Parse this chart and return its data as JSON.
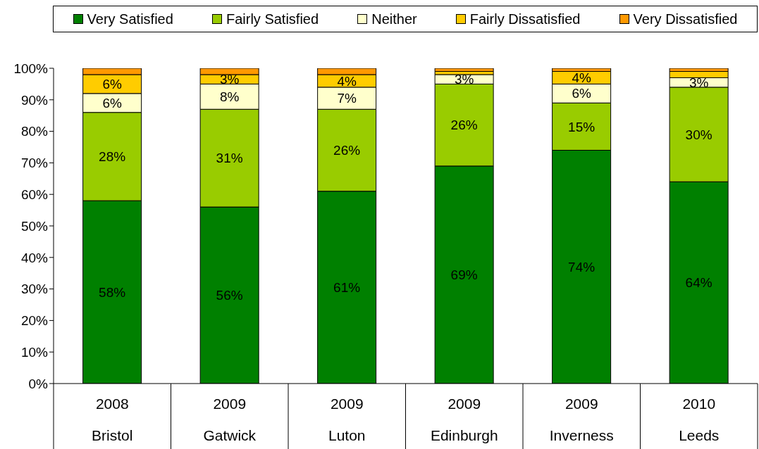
{
  "chart_data": {
    "type": "bar",
    "stacked": true,
    "categories": [
      "2008\nBristol",
      "2009\nGatwick",
      "2009\nLuton",
      "2009\nEdinburgh",
      "2009\nInverness",
      "2010\nLeeds"
    ],
    "series": [
      {
        "name": "Very Satisfied",
        "color": "#008000",
        "values": [
          58,
          56,
          61,
          69,
          74,
          64
        ],
        "value_labels": [
          "58%",
          "56%",
          "61%",
          "69%",
          "74%",
          "64%"
        ]
      },
      {
        "name": "Fairly Satisfied",
        "color": "#99cc00",
        "values": [
          28,
          31,
          26,
          26,
          15,
          30
        ],
        "value_labels": [
          "28%",
          "31%",
          "26%",
          "26%",
          "15%",
          "30%"
        ]
      },
      {
        "name": "Neither",
        "color": "#ffffcc",
        "values": [
          6,
          8,
          7,
          3,
          6,
          3
        ],
        "value_labels": [
          "6%",
          "8%",
          "7%",
          "3%",
          "6%",
          "3%"
        ]
      },
      {
        "name": "Fairly Dissatisfied",
        "color": "#ffcc00",
        "values": [
          6,
          3,
          4,
          1,
          4,
          2
        ],
        "value_labels": [
          "6%",
          "3%",
          "4%",
          null,
          "4%",
          null
        ]
      },
      {
        "name": "Very Dissatisfied",
        "color": "#ff9900",
        "values": [
          2,
          2,
          2,
          1,
          1,
          1
        ],
        "value_labels": [
          null,
          null,
          null,
          null,
          null,
          null
        ]
      }
    ],
    "ylim": [
      0,
      100
    ],
    "yticks": [
      {
        "value": 0,
        "label": "0%"
      },
      {
        "value": 10,
        "label": "10%"
      },
      {
        "value": 20,
        "label": "20%"
      },
      {
        "value": 30,
        "label": "30%"
      },
      {
        "value": 40,
        "label": "40%"
      },
      {
        "value": 50,
        "label": "50%"
      },
      {
        "value": 60,
        "label": "60%"
      },
      {
        "value": 70,
        "label": "70%"
      },
      {
        "value": 80,
        "label": "80%"
      },
      {
        "value": 90,
        "label": "90%"
      },
      {
        "value": 100,
        "label": "100%"
      }
    ],
    "grid": false,
    "legend": "top"
  }
}
